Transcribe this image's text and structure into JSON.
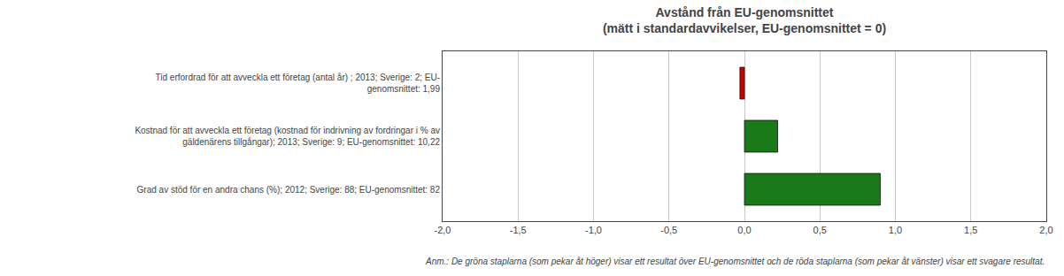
{
  "chart_data": {
    "type": "bar",
    "orientation": "horizontal",
    "title": "Avstånd från EU-genomsnittet",
    "subtitle": "(mätt i standardavvikelser, EU-genomsnittet = 0)",
    "categories": [
      "Tid erfordrad för att avveckla ett företag (antal år) ; 2013; Sverige: 2; EU-\ngenomsnittet: 1,99",
      "Kostnad för att avveckla ett företag (kostnad för indrivning av fordringar i % av\ngäldenärens tillgångar); 2013; Sverige: 9; EU-genomsnittet: 10,22",
      "Grad av stöd för en andra chans (%); 2012; Sverige: 88; EU-genomsnittet: 82"
    ],
    "values": [
      -0.03,
      0.22,
      0.9
    ],
    "colors": [
      "#cc0000",
      "#1a7a1a",
      "#1a7a1a"
    ],
    "xlim": [
      -2.0,
      2.0
    ],
    "xticks": [
      {
        "value": -2.0,
        "label": "-2,0"
      },
      {
        "value": -1.5,
        "label": "-1,5"
      },
      {
        "value": -1.0,
        "label": "-1,0"
      },
      {
        "value": -0.5,
        "label": "-0,5"
      },
      {
        "value": 0.0,
        "label": "0,0"
      },
      {
        "value": 0.5,
        "label": "0,5"
      },
      {
        "value": 1.0,
        "label": "1,0"
      },
      {
        "value": 1.5,
        "label": "1,5"
      },
      {
        "value": 2.0,
        "label": "2,0"
      }
    ],
    "grid": true,
    "annotations": [
      "Anm.: De gröna staplarna (som pekar åt höger) visar ett resultat över EU-genomsnittet och de röda staplarna (som pekar åt vänster) visar ett svagare resultat."
    ]
  }
}
